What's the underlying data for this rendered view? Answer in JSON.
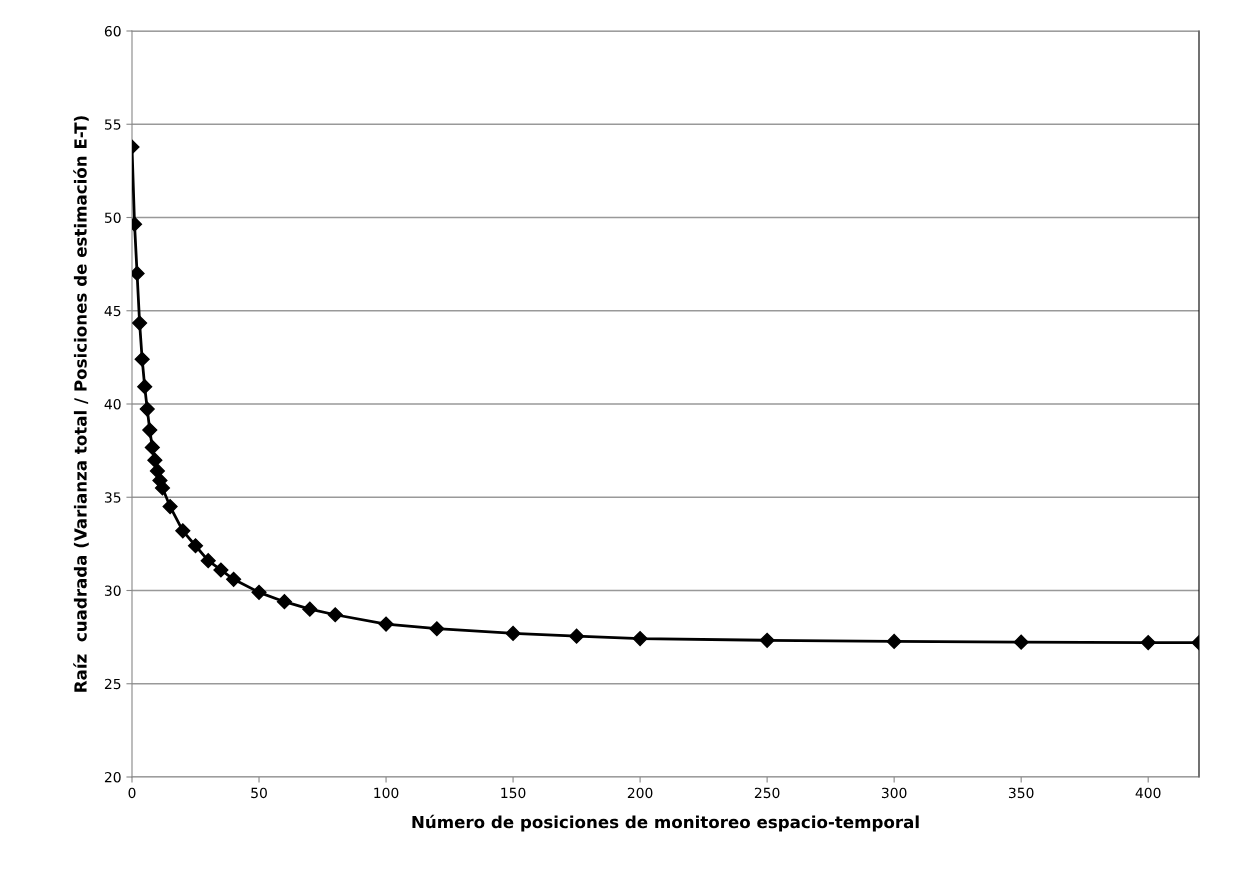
{
  "chart_data": {
    "type": "line",
    "xlabel": "Número de posiciones de monitoreo espacio-temporal",
    "ylabel": "Raíz  cuadrada (Varianza total / Posiciones de estimación E-T)",
    "series": [
      {
        "color": "#000000",
        "x": [
          0,
          1,
          2,
          3,
          4,
          5,
          6,
          7,
          8,
          9,
          10,
          11,
          12,
          15,
          20,
          25,
          30,
          35,
          40,
          50,
          60,
          70,
          80,
          100,
          120,
          150,
          175,
          200,
          250,
          300,
          350,
          400,
          420
        ],
        "values": [
          53.78,
          49.64,
          47.0,
          44.34,
          42.4,
          40.93,
          39.73,
          38.6,
          37.67,
          36.99,
          36.41,
          35.9,
          35.5,
          34.5,
          33.2,
          32.4,
          31.6,
          31.1,
          30.6,
          29.9,
          29.4,
          29.0,
          28.7,
          28.2,
          27.95,
          27.7,
          27.55,
          27.42,
          27.33,
          27.27,
          27.23,
          27.21,
          27.2
        ]
      }
    ],
    "xlim": [
      0,
      420
    ],
    "xticks": [
      0,
      50,
      100,
      150,
      200,
      250,
      300,
      350,
      400
    ],
    "ylim": [
      20,
      60
    ],
    "yticks": [
      20,
      25,
      30,
      35,
      40,
      45,
      50,
      55,
      60
    ],
    "grid": "y",
    "marker": "diamond",
    "line_style": "solid"
  }
}
